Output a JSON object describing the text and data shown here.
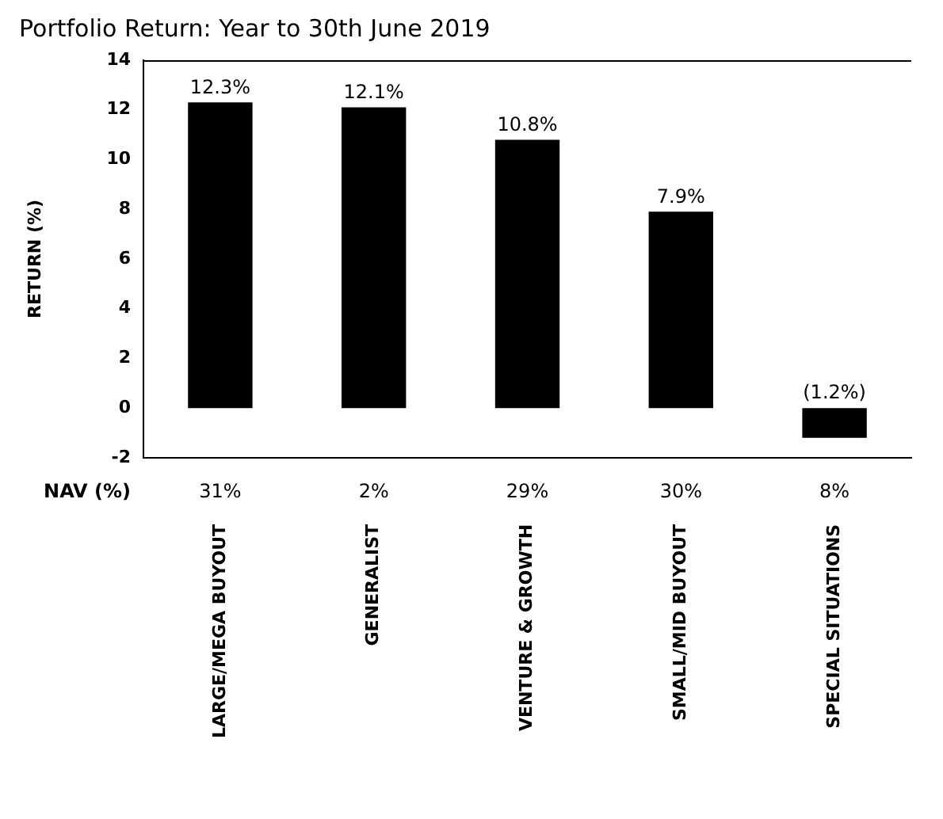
{
  "chart_data": {
    "type": "bar",
    "title": "Portfolio Return: Year to 30th June 2019",
    "ylabel": "RETURN (%)",
    "categories": [
      "LARGE/MEGA BUYOUT",
      "GENERALIST",
      "VENTURE & GROWTH",
      "SMALL/MID BUYOUT",
      "SPECIAL SITUATIONS"
    ],
    "values": [
      12.3,
      12.1,
      10.8,
      7.9,
      -1.2
    ],
    "value_labels": [
      "12.3%",
      "12.1%",
      "10.8%",
      "7.9%",
      "(1.2%)"
    ],
    "color": "#000000",
    "ylim": [
      -2,
      14
    ],
    "yticks": [
      -2,
      0,
      2,
      4,
      6,
      8,
      10,
      12,
      14
    ],
    "grid": false,
    "legend": false,
    "annotations": [
      "NAV (%)",
      "31%",
      "2%",
      "29%",
      "30%",
      "8%"
    ]
  }
}
